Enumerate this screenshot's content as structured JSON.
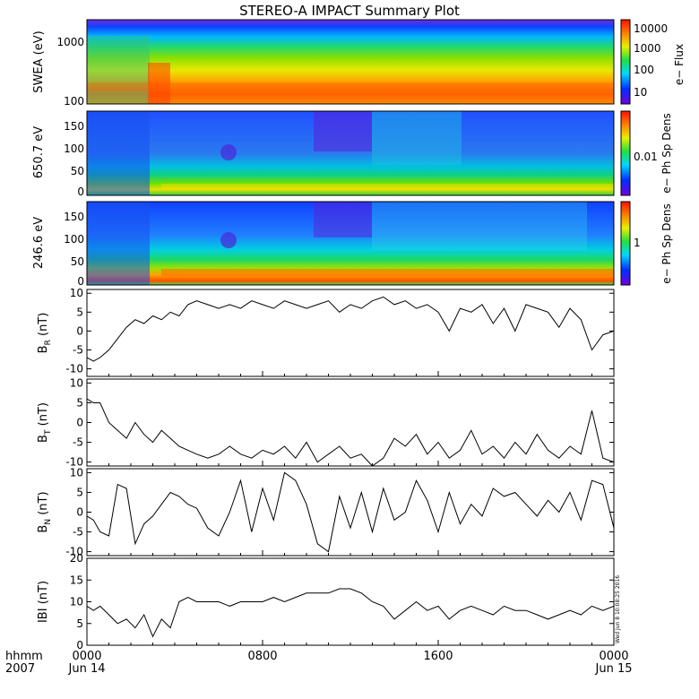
{
  "title": "STEREO-A IMPACT Summary Plot",
  "x_axis": {
    "ticks": [
      "0000",
      "0800",
      "1600",
      "0000"
    ],
    "dates": [
      "Jun 14",
      "",
      "",
      "Jun 15"
    ],
    "hhmm_label": "hhmm",
    "year_label": "2007"
  },
  "side_stamp": "Wed Jun  8 10:08:25 2016",
  "colorbars": {
    "swea": {
      "label": "e− Flux",
      "ticks": [
        "10000",
        "1000",
        "100",
        "10"
      ]
    },
    "pad650": {
      "label": "e− Ph Sp Dens",
      "ticks": [
        "0.01"
      ]
    },
    "pad246": {
      "label": "e− Ph Sp Dens",
      "ticks": [
        "1"
      ]
    }
  },
  "chart_data": [
    {
      "type": "heatmap",
      "ylabel": "SWEA (eV)",
      "y_ticks": [
        "1000",
        "100"
      ],
      "ylim": [
        90,
        2000
      ],
      "color_scale": "rainbow-log",
      "description_values": {
        "colorbar_range": [
          3,
          20000
        ]
      }
    },
    {
      "type": "heatmap",
      "ylabel": "650.7 eV",
      "y_ticks": [
        "150",
        "100",
        "50",
        "0"
      ],
      "ylim": [
        0,
        180
      ],
      "color_scale": "rainbow-log"
    },
    {
      "type": "heatmap",
      "ylabel": "246.6 eV",
      "y_ticks": [
        "150",
        "100",
        "50",
        "0"
      ],
      "ylim": [
        0,
        180
      ],
      "color_scale": "rainbow-log"
    },
    {
      "type": "line",
      "ylabel": "BR (nT)",
      "ylabel_main": "B",
      "ylabel_sub": "R",
      "ylabel_unit": " (nT)",
      "y_ticks": [
        "10",
        "5",
        "0",
        "-5",
        "-10"
      ],
      "ylim": [
        -12,
        11
      ],
      "x_hours": [
        0,
        0.3,
        0.6,
        1,
        1.4,
        1.8,
        2.2,
        2.6,
        3,
        3.4,
        3.8,
        4.2,
        4.6,
        5,
        5.5,
        6,
        6.5,
        7,
        7.5,
        8,
        8.5,
        9,
        9.5,
        10,
        10.5,
        11,
        11.5,
        12,
        12.5,
        13,
        13.5,
        14,
        14.5,
        15,
        15.5,
        16,
        16.5,
        17,
        17.5,
        18,
        18.5,
        19,
        19.5,
        20,
        20.5,
        21,
        21.5,
        22,
        22.5,
        23,
        23.5,
        24
      ],
      "values": [
        -7,
        -8,
        -7,
        -5,
        -2,
        1,
        3,
        2,
        4,
        3,
        5,
        4,
        7,
        8,
        7,
        6,
        7,
        6,
        8,
        7,
        6,
        8,
        7,
        6,
        7,
        8,
        5,
        7,
        6,
        8,
        9,
        7,
        8,
        6,
        7,
        5,
        0,
        6,
        5,
        7,
        2,
        6,
        0,
        7,
        6,
        5,
        1,
        6,
        3,
        -5,
        -1,
        0
      ]
    },
    {
      "type": "line",
      "ylabel": "BT (nT)",
      "ylabel_main": "B",
      "ylabel_sub": "T",
      "ylabel_unit": " (nT)",
      "y_ticks": [
        "10",
        "5",
        "0",
        "-5",
        "-10"
      ],
      "ylim": [
        -11,
        11
      ],
      "x_hours": [
        0,
        0.3,
        0.6,
        1,
        1.4,
        1.8,
        2.2,
        2.6,
        3,
        3.4,
        3.8,
        4.2,
        4.6,
        5,
        5.5,
        6,
        6.5,
        7,
        7.5,
        8,
        8.5,
        9,
        9.5,
        10,
        10.5,
        11,
        11.5,
        12,
        12.5,
        13,
        13.5,
        14,
        14.5,
        15,
        15.5,
        16,
        16.5,
        17,
        17.5,
        18,
        18.5,
        19,
        19.5,
        20,
        20.5,
        21,
        21.5,
        22,
        22.5,
        23,
        23.5,
        24
      ],
      "values": [
        6,
        5,
        5,
        0,
        -2,
        -4,
        0,
        -3,
        -5,
        -2,
        -4,
        -6,
        -7,
        -8,
        -9,
        -8,
        -6,
        -8,
        -9,
        -7,
        -8,
        -6,
        -9,
        -5,
        -10,
        -8,
        -6,
        -9,
        -8,
        -11,
        -9,
        -4,
        -6,
        -3,
        -8,
        -5,
        -9,
        -7,
        -2,
        -8,
        -6,
        -9,
        -5,
        -8,
        -3,
        -7,
        -9,
        -6,
        -8,
        3,
        -9,
        -10
      ]
    },
    {
      "type": "line",
      "ylabel": "BN (nT)",
      "ylabel_main": "B",
      "ylabel_sub": "N",
      "ylabel_unit": " (nT)",
      "y_ticks": [
        "10",
        "5",
        "0",
        "-5",
        "-10"
      ],
      "ylim": [
        -11,
        11
      ],
      "x_hours": [
        0,
        0.3,
        0.6,
        1,
        1.4,
        1.8,
        2.2,
        2.6,
        3,
        3.4,
        3.8,
        4.2,
        4.6,
        5,
        5.5,
        6,
        6.5,
        7,
        7.5,
        8,
        8.5,
        9,
        9.5,
        10,
        10.5,
        11,
        11.5,
        12,
        12.5,
        13,
        13.5,
        14,
        14.5,
        15,
        15.5,
        16,
        16.5,
        17,
        17.5,
        18,
        18.5,
        19,
        19.5,
        20,
        20.5,
        21,
        21.5,
        22,
        22.5,
        23,
        23.5,
        24
      ],
      "values": [
        -1,
        -2,
        -5,
        -6,
        7,
        6,
        -8,
        -3,
        -1,
        2,
        5,
        4,
        2,
        1,
        -4,
        -6,
        0,
        8,
        -5,
        6,
        -2,
        10,
        8,
        2,
        -8,
        -10,
        4,
        -4,
        5,
        -5,
        6,
        -2,
        0,
        8,
        3,
        -5,
        5,
        -3,
        2,
        -1,
        6,
        4,
        5,
        2,
        -1,
        3,
        0,
        5,
        -2,
        8,
        7,
        -4
      ]
    },
    {
      "type": "line",
      "ylabel": "|B| (nT)",
      "ylabel_main": "IBI",
      "ylabel_sub": "",
      "ylabel_unit": " (nT)",
      "y_ticks": [
        "20",
        "15",
        "10",
        "5",
        "0"
      ],
      "ylim": [
        0,
        20
      ],
      "x_hours": [
        0,
        0.3,
        0.6,
        1,
        1.4,
        1.8,
        2.2,
        2.6,
        3,
        3.4,
        3.8,
        4.2,
        4.6,
        5,
        5.5,
        6,
        6.5,
        7,
        7.5,
        8,
        8.5,
        9,
        9.5,
        10,
        10.5,
        11,
        11.5,
        12,
        12.5,
        13,
        13.5,
        14,
        14.5,
        15,
        15.5,
        16,
        16.5,
        17,
        17.5,
        18,
        18.5,
        19,
        19.5,
        20,
        20.5,
        21,
        21.5,
        22,
        22.5,
        23,
        23.5,
        24
      ],
      "values": [
        9,
        8,
        9,
        7,
        5,
        6,
        4,
        7,
        2,
        6,
        4,
        10,
        11,
        10,
        10,
        10,
        9,
        10,
        10,
        10,
        11,
        10,
        11,
        12,
        12,
        12,
        13,
        13,
        12,
        10,
        9,
        6,
        8,
        10,
        8,
        9,
        6,
        8,
        9,
        8,
        7,
        9,
        8,
        8,
        7,
        6,
        7,
        8,
        7,
        9,
        8,
        9
      ]
    }
  ]
}
